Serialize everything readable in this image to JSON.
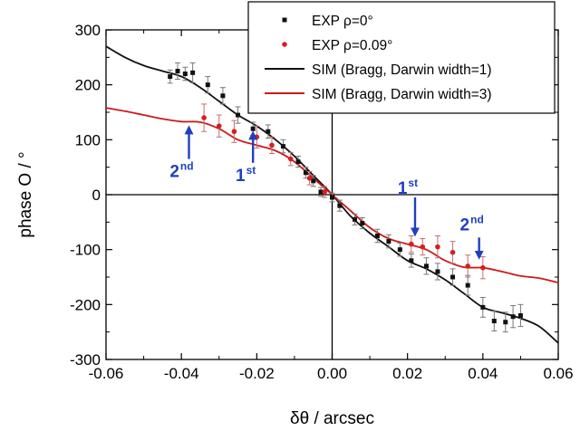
{
  "chart_data": {
    "type": "line",
    "title": "",
    "xlabel": "δθ / arcsec",
    "ylabel": "phase O / °",
    "xlim": [
      -0.06,
      0.06
    ],
    "ylim": [
      -300,
      300
    ],
    "x_ticks": [
      "-0.06",
      "-0.04",
      "-0.02",
      "0.00",
      "0.02",
      "0.04",
      "0.06"
    ],
    "y_ticks": [
      "300",
      "200",
      "100",
      "0",
      "-100",
      "-200",
      "-300"
    ],
    "grid": false,
    "legend_position": "top-right",
    "colors": {
      "exp_rho0": "#111111",
      "exp_rho009": "#d42020",
      "sim_dw1": "#111111",
      "sim_dw3": "#cc1a1a",
      "annotation": "#1f3fbf"
    },
    "series": [
      {
        "name": "EXP ρ=0°",
        "kind": "scatter",
        "points": [
          [
            -0.043,
            215,
            12
          ],
          [
            -0.041,
            225,
            15
          ],
          [
            -0.039,
            220,
            12
          ],
          [
            -0.037,
            222,
            18
          ],
          [
            -0.033,
            200,
            15
          ],
          [
            -0.029,
            180,
            15
          ],
          [
            -0.025,
            145,
            15
          ],
          [
            -0.021,
            120,
            12
          ],
          [
            -0.017,
            115,
            12
          ],
          [
            -0.013,
            88,
            12
          ],
          [
            -0.009,
            60,
            10
          ],
          [
            -0.007,
            40,
            10
          ],
          [
            -0.005,
            25,
            10
          ],
          [
            -0.003,
            5,
            8
          ],
          [
            0.0,
            -5,
            8
          ],
          [
            0.002,
            -20,
            10
          ],
          [
            0.006,
            -45,
            10
          ],
          [
            0.008,
            -52,
            10
          ],
          [
            0.012,
            -75,
            12
          ],
          [
            0.015,
            -85,
            12
          ],
          [
            0.018,
            -100,
            12
          ],
          [
            0.021,
            -120,
            12
          ],
          [
            0.025,
            -130,
            15
          ],
          [
            0.028,
            -140,
            15
          ],
          [
            0.032,
            -150,
            15
          ],
          [
            0.036,
            -165,
            18
          ],
          [
            0.04,
            -205,
            18
          ],
          [
            0.043,
            -230,
            18
          ],
          [
            0.046,
            -232,
            18
          ],
          [
            0.048,
            -222,
            20
          ],
          [
            0.05,
            -220,
            20
          ]
        ]
      },
      {
        "name": "EXP ρ=0.09°",
        "kind": "scatter",
        "points": [
          [
            -0.034,
            140,
            25
          ],
          [
            -0.03,
            125,
            20
          ],
          [
            -0.026,
            115,
            20
          ],
          [
            -0.02,
            105,
            20
          ],
          [
            -0.016,
            90,
            15
          ],
          [
            -0.011,
            65,
            12
          ],
          [
            -0.006,
            30,
            12
          ],
          [
            -0.002,
            5,
            10
          ],
          [
            0.021,
            -90,
            15
          ],
          [
            0.024,
            -95,
            15
          ],
          [
            0.028,
            -95,
            20
          ],
          [
            0.032,
            -105,
            20
          ],
          [
            0.036,
            -130,
            20
          ],
          [
            0.04,
            -133,
            20
          ]
        ]
      },
      {
        "name": "SIM (Bragg, Darwin width=1)",
        "kind": "line",
        "x": [
          -0.06,
          -0.055,
          -0.05,
          -0.045,
          -0.04,
          -0.035,
          -0.03,
          -0.025,
          -0.02,
          -0.015,
          -0.01,
          -0.005,
          0.0,
          0.005,
          0.01,
          0.015,
          0.02,
          0.025,
          0.03,
          0.035,
          0.04,
          0.045,
          0.05,
          0.055,
          0.06
        ],
        "y": [
          270,
          250,
          235,
          225,
          215,
          195,
          170,
          145,
          125,
          100,
          70,
          35,
          0,
          -40,
          -70,
          -95,
          -120,
          -135,
          -155,
          -180,
          -205,
          -215,
          -225,
          -240,
          -270
        ]
      },
      {
        "name": "SIM (Bragg, Darwin width=3)",
        "kind": "line",
        "x": [
          -0.06,
          -0.055,
          -0.05,
          -0.045,
          -0.04,
          -0.035,
          -0.03,
          -0.025,
          -0.02,
          -0.015,
          -0.01,
          -0.005,
          0.0,
          0.005,
          0.01,
          0.015,
          0.02,
          0.025,
          0.03,
          0.035,
          0.04,
          0.045,
          0.05,
          0.055,
          0.06
        ],
        "y": [
          158,
          152,
          145,
          138,
          133,
          132,
          120,
          100,
          90,
          80,
          60,
          30,
          0,
          -30,
          -60,
          -80,
          -90,
          -100,
          -120,
          -132,
          -133,
          -140,
          -148,
          -152,
          -160
        ]
      }
    ],
    "annotations": [
      {
        "label": "2",
        "sup": "nd",
        "x": -0.038,
        "y": 65,
        "dir": "up",
        "arrow_from": 65,
        "arrow_to": 128
      },
      {
        "label": "1",
        "sup": "st",
        "x": -0.021,
        "y": 58,
        "dir": "up",
        "arrow_from": 58,
        "arrow_to": 118
      },
      {
        "label": "1",
        "sup": "st",
        "x": 0.022,
        "y": -8,
        "dir": "down",
        "arrow_from": -5,
        "arrow_to": -78
      },
      {
        "label": "2",
        "sup": "nd",
        "x": 0.039,
        "y": -75,
        "dir": "down",
        "arrow_from": -78,
        "arrow_to": -120
      }
    ]
  }
}
